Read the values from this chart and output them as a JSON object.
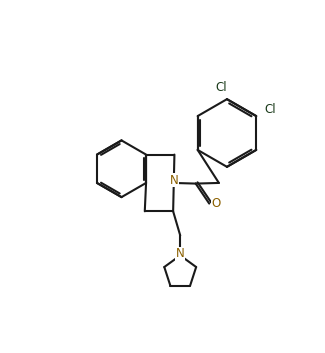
{
  "bg_color": "#ffffff",
  "bond_color": "#1a1a1a",
  "atom_color": "#8B6000",
  "cl_color": "#1a3a1a",
  "line_width": 1.5,
  "font_size": 8.5,
  "fig_width": 3.25,
  "fig_height": 3.53,
  "xlim": [
    0,
    10
  ],
  "ylim": [
    0,
    10
  ]
}
